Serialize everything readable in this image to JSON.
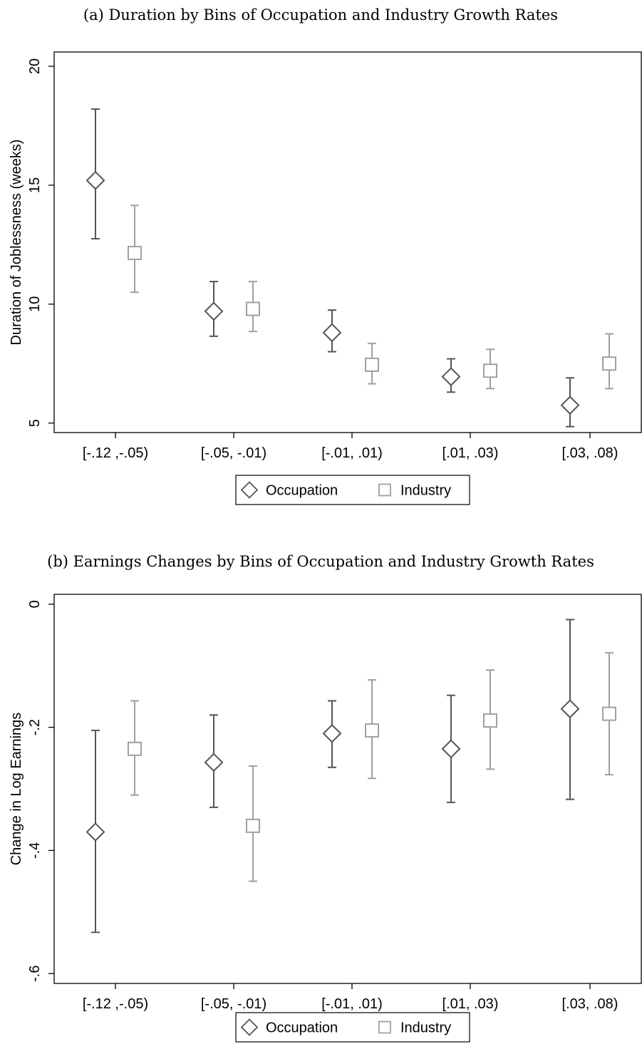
{
  "chart_data": [
    {
      "type": "scatter",
      "title": "(a) Duration by Bins of Occupation and Industry Growth Rates",
      "xlabel": "",
      "ylabel": "Duration of Joblessness (weeks)",
      "ylim": [
        4.6,
        20.6
      ],
      "yticks": [
        5,
        10,
        15,
        20
      ],
      "ytick_labels": [
        "5",
        "10",
        "15",
        "20"
      ],
      "categories": [
        "[-.12 ,-.05)",
        "[-.05, -.01)",
        "[-.01, .01)",
        "[.01, .03)",
        "[.03, .08)"
      ],
      "grid": false,
      "legend": "bottom-center",
      "series": [
        {
          "name": "Occupation",
          "marker": "diamond",
          "color": "#555555",
          "values": [
            15.2,
            9.7,
            8.8,
            6.95,
            5.75
          ],
          "lower": [
            12.75,
            8.65,
            8.0,
            6.3,
            4.85
          ],
          "upper": [
            18.2,
            10.95,
            9.75,
            7.7,
            6.9
          ]
        },
        {
          "name": "Industry",
          "marker": "square",
          "color": "#a0a0a0",
          "values": [
            12.15,
            9.8,
            7.45,
            7.2,
            7.5
          ],
          "lower": [
            10.5,
            8.85,
            6.65,
            6.45,
            6.45
          ],
          "upper": [
            14.15,
            10.95,
            8.35,
            8.1,
            8.75
          ]
        }
      ]
    },
    {
      "type": "scatter",
      "title": "(b) Earnings Changes by Bins of Occupation and Industry Growth Rates",
      "xlabel": "",
      "ylabel": "Change in Log Earnings",
      "ylim": [
        -0.616,
        0.016
      ],
      "yticks": [
        0,
        -0.2,
        -0.4,
        -0.6
      ],
      "ytick_labels": [
        "0",
        "-.2",
        "-.4",
        "-.6"
      ],
      "categories": [
        "[-.12 ,-.05)",
        "[-.05, -.01)",
        "[-.01, .01)",
        "[.01, .03)",
        "[.03, .08)"
      ],
      "grid": false,
      "legend": "bottom-center",
      "series": [
        {
          "name": "Occupation",
          "marker": "diamond",
          "color": "#555555",
          "values": [
            -0.37,
            -0.257,
            -0.21,
            -0.235,
            -0.17
          ],
          "lower": [
            -0.533,
            -0.33,
            -0.265,
            -0.322,
            -0.317
          ],
          "upper": [
            -0.205,
            -0.18,
            -0.157,
            -0.148,
            -0.025
          ]
        },
        {
          "name": "Industry",
          "marker": "square",
          "color": "#a0a0a0",
          "values": [
            -0.235,
            -0.36,
            -0.205,
            -0.189,
            -0.178
          ],
          "lower": [
            -0.31,
            -0.45,
            -0.283,
            -0.268,
            -0.277
          ],
          "upper": [
            -0.157,
            -0.263,
            -0.123,
            -0.107,
            -0.079
          ]
        }
      ]
    }
  ]
}
